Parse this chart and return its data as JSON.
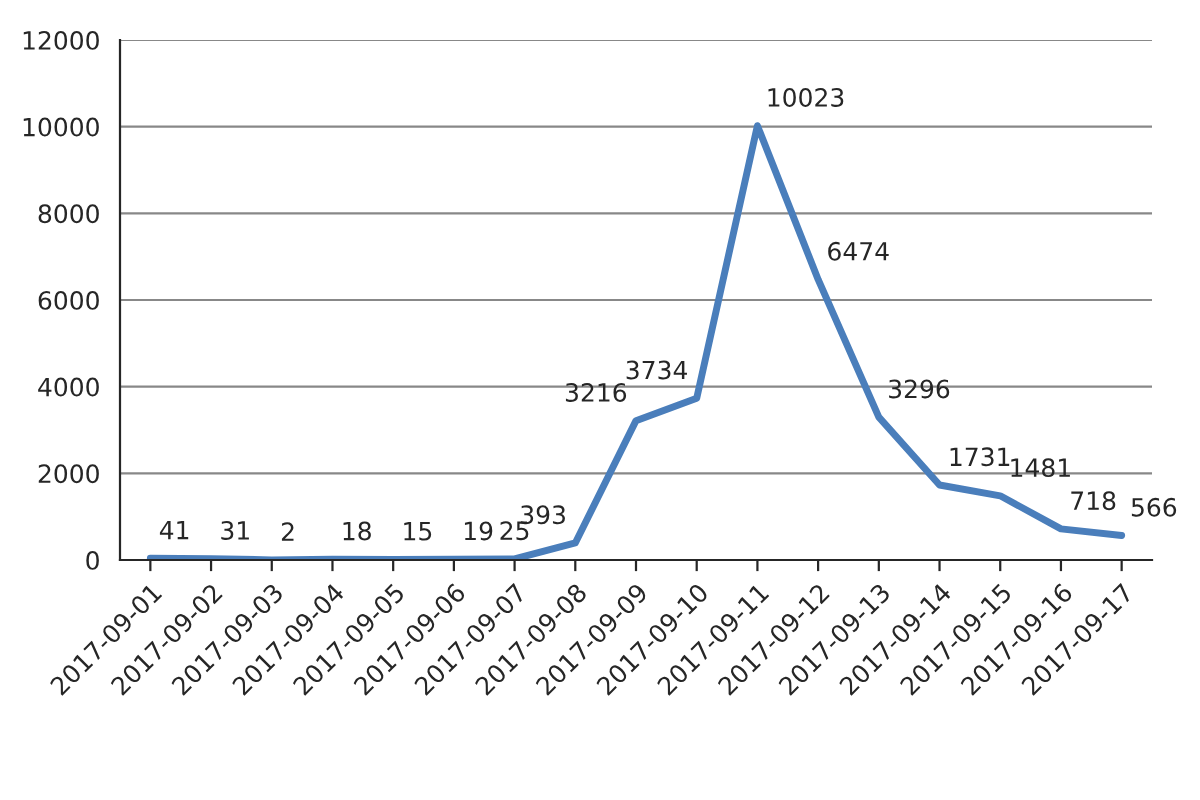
{
  "chart_data": {
    "type": "line",
    "categories": [
      "2017-09-01",
      "2017-09-02",
      "2017-09-03",
      "2017-09-04",
      "2017-09-05",
      "2017-09-06",
      "2017-09-07",
      "2017-09-08",
      "2017-09-09",
      "2017-09-10",
      "2017-09-11",
      "2017-09-12",
      "2017-09-13",
      "2017-09-14",
      "2017-09-15",
      "2017-09-16",
      "2017-09-17"
    ],
    "series": [
      {
        "color": "#4a7ebb",
        "values": [
          41,
          31,
          2,
          18,
          15,
          19,
          25,
          393,
          3216,
          3734,
          10023,
          6474,
          3296,
          1731,
          1481,
          718,
          566
        ]
      }
    ],
    "ylim": [
      0,
      12000
    ],
    "yticks": [
      0,
      2000,
      4000,
      6000,
      8000,
      10000,
      12000
    ],
    "grid": "y",
    "data_labels": true,
    "marker": "none",
    "line_style": "solid",
    "legend": false
  }
}
